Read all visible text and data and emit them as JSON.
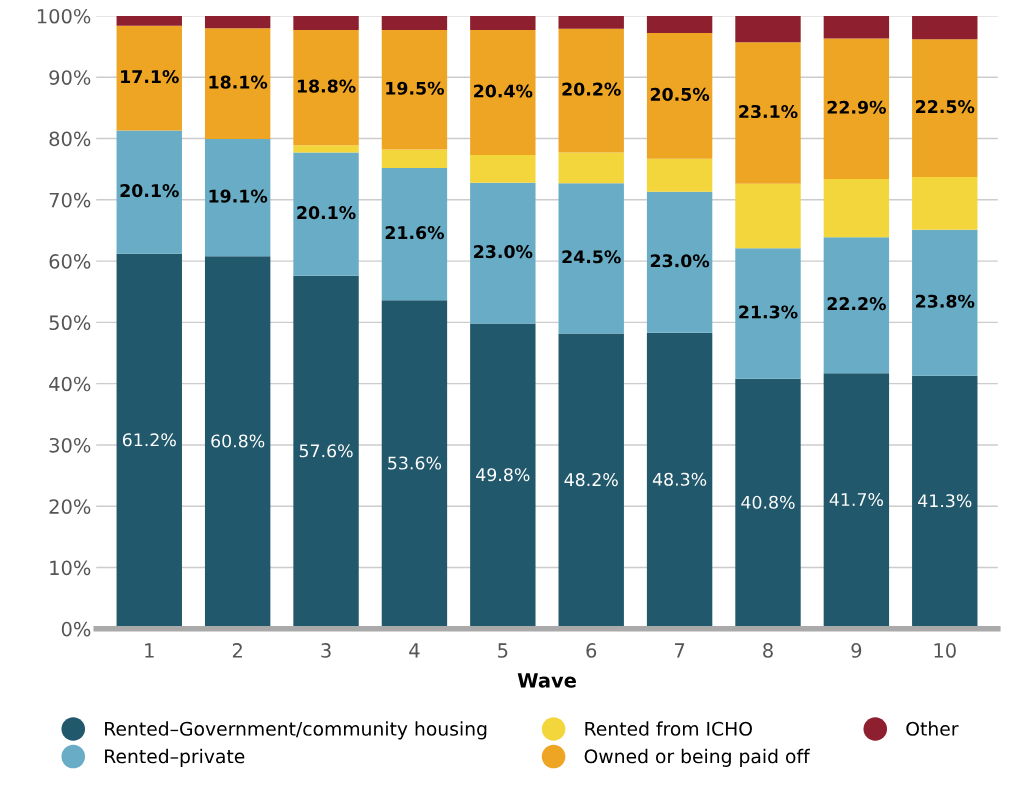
{
  "chart_data": {
    "type": "bar",
    "stacked": true,
    "xlabel": "Wave",
    "categories": [
      "1",
      "2",
      "3",
      "4",
      "5",
      "6",
      "7",
      "8",
      "9",
      "10"
    ],
    "ylim": [
      0,
      100
    ],
    "yticks": [
      {
        "value": 0,
        "label": "0%"
      },
      {
        "value": 10,
        "label": "10%"
      },
      {
        "value": 20,
        "label": "20%"
      },
      {
        "value": 30,
        "label": "30%"
      },
      {
        "value": 40,
        "label": "40%"
      },
      {
        "value": 50,
        "label": "50%"
      },
      {
        "value": 60,
        "label": "60%"
      },
      {
        "value": 70,
        "label": "70%"
      },
      {
        "value": 80,
        "label": "80%"
      },
      {
        "value": 90,
        "label": "90%"
      },
      {
        "value": 100,
        "label": "100%"
      }
    ],
    "grid": "y",
    "legend": "bottom",
    "series": [
      {
        "name": "Rented–Government/community housing",
        "color": "#22586b",
        "values": [
          61.2,
          60.8,
          57.6,
          53.6,
          49.8,
          48.2,
          48.3,
          40.8,
          41.7,
          41.3
        ],
        "value_labels": [
          "61.2%",
          "60.8%",
          "57.6%",
          "53.6%",
          "49.8%",
          "48.2%",
          "48.3%",
          "40.8%",
          "41.7%",
          "41.3%"
        ]
      },
      {
        "name": "Rented–private",
        "color": "#68adc5",
        "values": [
          20.1,
          19.1,
          20.1,
          21.6,
          23.0,
          24.5,
          23.0,
          21.3,
          22.2,
          23.8
        ],
        "value_labels": [
          "20.1%",
          "19.1%",
          "20.1%",
          "21.6%",
          "23.0%",
          "24.5%",
          "23.0%",
          "21.3%",
          "22.2%",
          "23.8%"
        ]
      },
      {
        "name": "Rented from ICHO",
        "color": "#f2d63c",
        "values": [
          0,
          0,
          1.2,
          3.0,
          4.5,
          5.0,
          5.4,
          10.5,
          9.5,
          8.6
        ]
      },
      {
        "name": "Owned or being paid off",
        "color": "#eea524",
        "values": [
          17.1,
          18.1,
          18.8,
          19.5,
          20.4,
          20.2,
          20.5,
          23.1,
          22.9,
          22.5
        ],
        "value_labels": [
          "17.1%",
          "18.1%",
          "18.8%",
          "19.5%",
          "20.4%",
          "20.2%",
          "20.5%",
          "23.1%",
          "22.9%",
          "22.5%"
        ]
      },
      {
        "name": "Other",
        "color": "#8e1f2f",
        "values": [
          1.6,
          2.0,
          2.3,
          2.3,
          2.3,
          2.1,
          2.8,
          4.3,
          3.7,
          3.8
        ]
      }
    ]
  }
}
